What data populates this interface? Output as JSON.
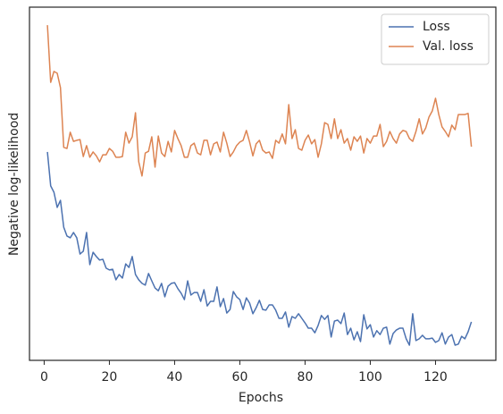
{
  "chart_data": {
    "type": "line",
    "xlabel": "Epochs",
    "ylabel": "Negative log-likelihood",
    "x": [
      1,
      2,
      3,
      4,
      5,
      6,
      7,
      8,
      9,
      10,
      11,
      12,
      13,
      14,
      15,
      16,
      17,
      18,
      19,
      20,
      21,
      22,
      23,
      24,
      25,
      26,
      27,
      28,
      29,
      30,
      31,
      32,
      33,
      34,
      35,
      36,
      37,
      38,
      39,
      40,
      41,
      42,
      43,
      44,
      45,
      46,
      47,
      48,
      49,
      50,
      51,
      52,
      53,
      54,
      55,
      56,
      57,
      58,
      59,
      60,
      61,
      62,
      63,
      64,
      65,
      66,
      67,
      68,
      69,
      70,
      71,
      72,
      73,
      74,
      75,
      76,
      77,
      78,
      79,
      80,
      81,
      82,
      83,
      84,
      85,
      86,
      87,
      88,
      89,
      90,
      91,
      92,
      93,
      94,
      95,
      96,
      97,
      98,
      99,
      100,
      101,
      102,
      103,
      104,
      105,
      106,
      107,
      108,
      109,
      110,
      111,
      112,
      113,
      114,
      115,
      116,
      117,
      118,
      119,
      120,
      121,
      122,
      123,
      124,
      125,
      126,
      127,
      128,
      129,
      130,
      131
    ],
    "series": [
      {
        "name": "Loss",
        "color": "#4c72b0",
        "values": [
          59,
          49.4,
          47.6,
          43.3,
          45.3,
          37.7,
          35.2,
          34.7,
          36.2,
          34.7,
          30.1,
          30.9,
          36.2,
          27.1,
          30.6,
          29.4,
          28.4,
          28.6,
          26.1,
          25.6,
          25.8,
          22.8,
          24.3,
          23.3,
          27.3,
          26.3,
          29.4,
          24.3,
          22.8,
          21.8,
          21.3,
          24.6,
          22.5,
          20.5,
          19.7,
          21.8,
          18,
          21,
          21.8,
          22,
          20.3,
          19,
          17.2,
          22.5,
          18.5,
          19.2,
          19.2,
          16.7,
          20,
          15.4,
          16.7,
          16.7,
          20.8,
          15.2,
          17.5,
          13.4,
          14.4,
          19.5,
          18,
          17.2,
          14.4,
          17.7,
          16.2,
          13.2,
          14.9,
          17,
          14.4,
          14.2,
          15.7,
          15.7,
          14.2,
          11.9,
          11.9,
          13.7,
          9.4,
          12.4,
          11.9,
          13.2,
          11.9,
          10.6,
          9.1,
          9.1,
          7.8,
          9.9,
          12.7,
          11.6,
          12.7,
          6.6,
          11.1,
          11.4,
          10.4,
          13.4,
          7.3,
          9.1,
          5.8,
          8.1,
          5.3,
          12.9,
          8.9,
          10.1,
          6.6,
          8.4,
          7.3,
          9.1,
          9.4,
          4.6,
          7.6,
          8.6,
          9.1,
          9.1,
          6.1,
          4.3,
          13.2,
          5.6,
          6.1,
          7.1,
          6.1,
          6.1,
          6.3,
          5.1,
          5.6,
          7.8,
          4.6,
          6.6,
          7.3,
          4.3,
          4.6,
          6.8,
          6.1,
          8.1,
          10.9
        ]
      },
      {
        "name": "Val. loss",
        "color": "#dd8452",
        "values": [
          94.9,
          78.7,
          81.8,
          81.3,
          77.2,
          60.3,
          60,
          64.6,
          62,
          62.3,
          62.5,
          57.7,
          60.8,
          57.5,
          59,
          57.9,
          56.2,
          58.2,
          58.2,
          60,
          59.2,
          57.5,
          57.5,
          57.7,
          64.6,
          61.5,
          63.3,
          70.1,
          56.2,
          52.2,
          58.7,
          59.2,
          63.3,
          54.7,
          63.5,
          58.7,
          57.7,
          62,
          59,
          65.1,
          62.8,
          60.8,
          57.5,
          57.5,
          60.8,
          61.5,
          58.7,
          58.2,
          62.3,
          62.3,
          58.2,
          61.3,
          61.8,
          59,
          64.6,
          61.5,
          57.7,
          59,
          60.8,
          61.8,
          62.3,
          65.1,
          61.8,
          57.9,
          61.3,
          62.3,
          59.5,
          58.7,
          59,
          57.2,
          62.3,
          61.5,
          64.1,
          61.3,
          72.4,
          62.8,
          65.3,
          60,
          59.5,
          62.3,
          63.8,
          61.3,
          62.5,
          57.5,
          61.3,
          67.3,
          66.8,
          62.8,
          68.4,
          62.8,
          65.3,
          61.5,
          62.8,
          59.5,
          63.3,
          62,
          63.5,
          58.7,
          62.8,
          61.5,
          63.5,
          63.5,
          66.8,
          60.5,
          62,
          64.8,
          62.8,
          61.5,
          64.1,
          65.1,
          64.8,
          62.8,
          62,
          64.8,
          68.4,
          64.1,
          65.8,
          68.9,
          70.6,
          74.2,
          69.6,
          66.1,
          64.8,
          63.3,
          66.6,
          65.3,
          69.6,
          69.6,
          69.6,
          69.9,
          60.5
        ]
      }
    ],
    "xlim": [
      -4.5,
      138.5
    ],
    "xticks": [
      0,
      20,
      40,
      60,
      80,
      100,
      120
    ],
    "ylim": [
      0,
      100
    ],
    "legend": "upper right"
  }
}
